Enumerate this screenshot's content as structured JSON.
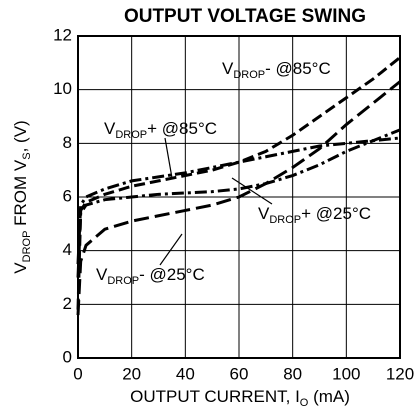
{
  "chart_data": {
    "type": "line",
    "title": "OUTPUT VOLTAGE SWING",
    "x_label": {
      "main": "OUTPUT CURRENT, I",
      "sub": "O",
      "rest": " (mA)"
    },
    "y_label": {
      "main": "V",
      "sub": "DROP",
      "mid": " FROM V",
      "sub2": "S",
      "rest": ", (V)"
    },
    "x": [
      0,
      1,
      3,
      10,
      20,
      30,
      40,
      50,
      60,
      70,
      80,
      90,
      100,
      110,
      120
    ],
    "xlim": [
      0,
      120
    ],
    "xticks": [
      0,
      20,
      40,
      60,
      80,
      100,
      120
    ],
    "ylim": [
      0,
      12
    ],
    "yticks": [
      0,
      2,
      4,
      6,
      8,
      10,
      12
    ],
    "grid": true,
    "series": [
      {
        "label_main": "V",
        "label_sub": "DROP",
        "label_rest": "- @85°C",
        "color": "#000",
        "dash": "11,5",
        "values": [
          1.8,
          5.5,
          5.8,
          6.1,
          6.4,
          6.6,
          6.8,
          7.0,
          7.3,
          7.7,
          8.3,
          9.0,
          9.7,
          10.4,
          11.2
        ]
      },
      {
        "label_main": "V",
        "label_sub": "DROP",
        "label_rest": "+ @85°C",
        "color": "#000",
        "dash": "12,4,3,4",
        "values": [
          3.5,
          5.7,
          6.0,
          6.3,
          6.6,
          6.75,
          6.9,
          7.1,
          7.3,
          7.5,
          7.7,
          7.9,
          8.0,
          8.1,
          8.2
        ]
      },
      {
        "label_main": "V",
        "label_sub": "DROP",
        "label_rest": "+ @25°C",
        "color": "#000",
        "dash": "12,4,3,4",
        "values": [
          3.0,
          5.4,
          5.7,
          5.9,
          6.0,
          6.1,
          6.15,
          6.2,
          6.3,
          6.5,
          6.8,
          7.2,
          7.7,
          8.1,
          8.5
        ]
      },
      {
        "label_main": "V",
        "label_sub": "DROP",
        "label_rest": "- @25°C",
        "color": "#000",
        "dash": "15,6",
        "values": [
          1.6,
          3.6,
          4.2,
          4.8,
          5.1,
          5.3,
          5.5,
          5.7,
          6.0,
          6.5,
          7.1,
          7.8,
          8.7,
          9.5,
          10.3
        ]
      }
    ]
  }
}
